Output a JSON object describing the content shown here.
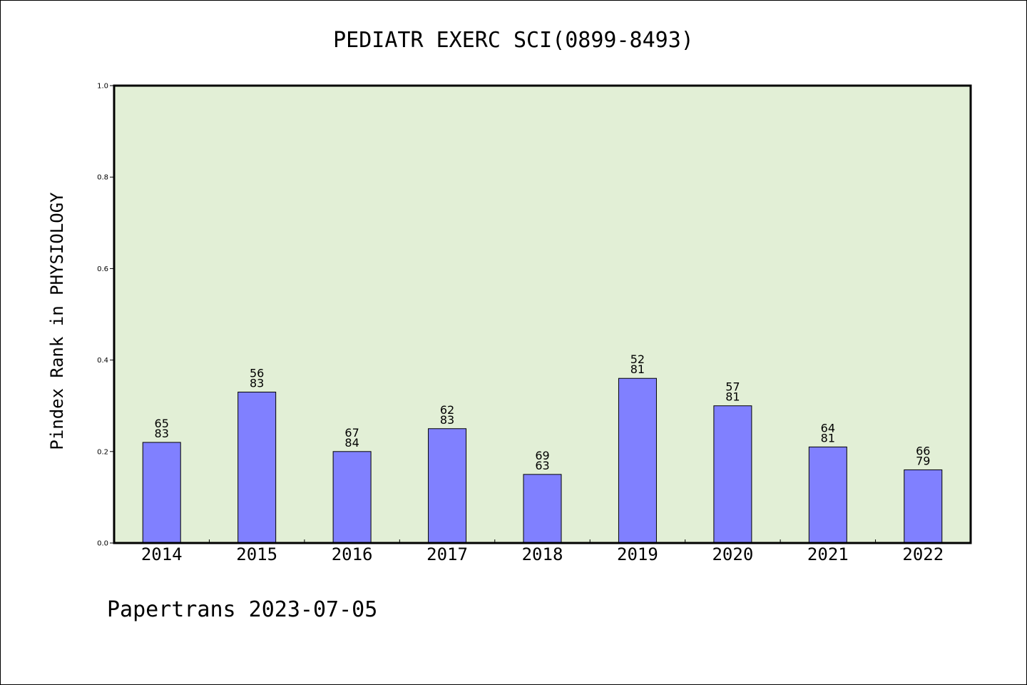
{
  "chart_data": {
    "type": "bar",
    "title": "PEDIATR EXERC SCI(0899-8493)",
    "xlabel": "",
    "ylabel": "Pindex Rank in PHYSIOLOGY",
    "ylim": [
      0,
      1.0
    ],
    "yticks": [
      "0.0",
      "0.2",
      "0.4",
      "0.6",
      "0.8",
      "1.0"
    ],
    "categories": [
      "2014",
      "2015",
      "2016",
      "2017",
      "2018",
      "2019",
      "2020",
      "2021",
      "2022"
    ],
    "values": [
      0.22,
      0.33,
      0.2,
      0.25,
      0.15,
      0.36,
      0.3,
      0.21,
      0.16
    ],
    "labels_top": [
      "65",
      "56",
      "67",
      "62",
      "69",
      "52",
      "57",
      "64",
      "66"
    ],
    "labels_bottom": [
      "83",
      "83",
      "84",
      "83",
      "63",
      "81",
      "81",
      "81",
      "79"
    ],
    "grid": false,
    "colors": {
      "plot_background": "#e2efd6",
      "bar_fill": "#8080ff",
      "bar_stroke": "#000000",
      "axis": "#000000"
    }
  },
  "footer": {
    "text": "Papertrans 2023-07-05"
  }
}
